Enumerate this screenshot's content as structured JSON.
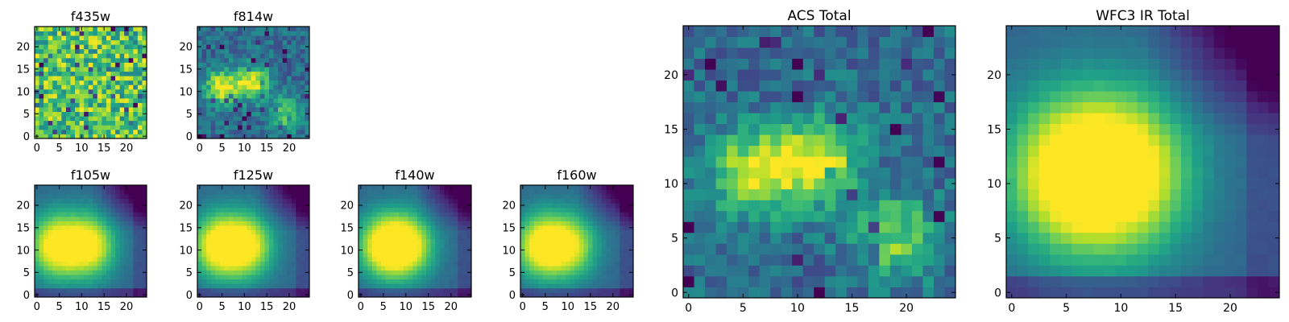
{
  "chart_data": [
    {
      "type": "heatmap",
      "title": "f435w",
      "xlim": [
        0,
        24
      ],
      "ylim": [
        0,
        24
      ],
      "xticks": [
        0,
        5,
        10,
        15,
        20
      ],
      "yticks": [
        0,
        5,
        10,
        15,
        20
      ],
      "colormap": "viridis",
      "pattern": "noise",
      "sources": []
    },
    {
      "type": "heatmap",
      "title": "f814w",
      "xlim": [
        0,
        24
      ],
      "ylim": [
        0,
        24
      ],
      "xticks": [
        0,
        5,
        10,
        15,
        20
      ],
      "yticks": [
        0,
        5,
        10,
        15,
        20
      ],
      "colormap": "viridis",
      "pattern": "acs",
      "sources": [
        {
          "x": 5,
          "y": 11,
          "peak": 1
        },
        {
          "x": 12,
          "y": 12,
          "peak": 1
        },
        {
          "x": 19,
          "y": 5,
          "peak": 0.6
        }
      ]
    },
    {
      "type": "heatmap",
      "title": "f105w",
      "xlim": [
        0,
        24
      ],
      "ylim": [
        0,
        24
      ],
      "xticks": [
        0,
        5,
        10,
        15,
        20
      ],
      "yticks": [
        0,
        5,
        10,
        15,
        20
      ],
      "colormap": "viridis",
      "pattern": "ir",
      "sources": [
        {
          "x": 4,
          "y": 11,
          "peak": 1
        },
        {
          "x": 12,
          "y": 11,
          "peak": 0.95
        }
      ]
    },
    {
      "type": "heatmap",
      "title": "f125w",
      "xlim": [
        0,
        24
      ],
      "ylim": [
        0,
        24
      ],
      "xticks": [
        0,
        5,
        10,
        15,
        20
      ],
      "yticks": [
        0,
        5,
        10,
        15,
        20
      ],
      "colormap": "viridis",
      "pattern": "ir",
      "sources": [
        {
          "x": 4,
          "y": 11,
          "peak": 1
        },
        {
          "x": 11,
          "y": 11,
          "peak": 0.9
        }
      ]
    },
    {
      "type": "heatmap",
      "title": "f140w",
      "xlim": [
        0,
        24
      ],
      "ylim": [
        0,
        24
      ],
      "xticks": [
        0,
        5,
        10,
        15,
        20
      ],
      "yticks": [
        0,
        5,
        10,
        15,
        20
      ],
      "colormap": "viridis",
      "pattern": "ir",
      "sources": [
        {
          "x": 5,
          "y": 11,
          "peak": 1
        },
        {
          "x": 11,
          "y": 11,
          "peak": 0.85
        }
      ]
    },
    {
      "type": "heatmap",
      "title": "f160w",
      "xlim": [
        0,
        24
      ],
      "ylim": [
        0,
        24
      ],
      "xticks": [
        0,
        5,
        10,
        15,
        20
      ],
      "yticks": [
        0,
        5,
        10,
        15,
        20
      ],
      "colormap": "viridis",
      "pattern": "ir",
      "sources": [
        {
          "x": 4,
          "y": 11,
          "peak": 1
        },
        {
          "x": 11,
          "y": 11,
          "peak": 0.8
        }
      ]
    },
    {
      "type": "heatmap",
      "title": "ACS Total",
      "xlim": [
        0,
        24
      ],
      "ylim": [
        0,
        24
      ],
      "xticks": [
        0,
        5,
        10,
        15,
        20
      ],
      "yticks": [
        0,
        5,
        10,
        15,
        20
      ],
      "colormap": "viridis",
      "pattern": "acs",
      "sources": [
        {
          "x": 6,
          "y": 11,
          "peak": 1
        },
        {
          "x": 12,
          "y": 12,
          "peak": 1
        },
        {
          "x": 19,
          "y": 5,
          "peak": 0.7
        }
      ]
    },
    {
      "type": "heatmap",
      "title": "WFC3 IR Total",
      "xlim": [
        0,
        24
      ],
      "ylim": [
        0,
        24
      ],
      "xticks": [
        0,
        5,
        10,
        15,
        20
      ],
      "yticks": [
        0,
        5,
        10,
        15,
        20
      ],
      "colormap": "viridis",
      "pattern": "ir",
      "sources": [
        {
          "x": 5,
          "y": 11,
          "peak": 1
        },
        {
          "x": 11,
          "y": 11,
          "peak": 0.95
        }
      ]
    }
  ]
}
